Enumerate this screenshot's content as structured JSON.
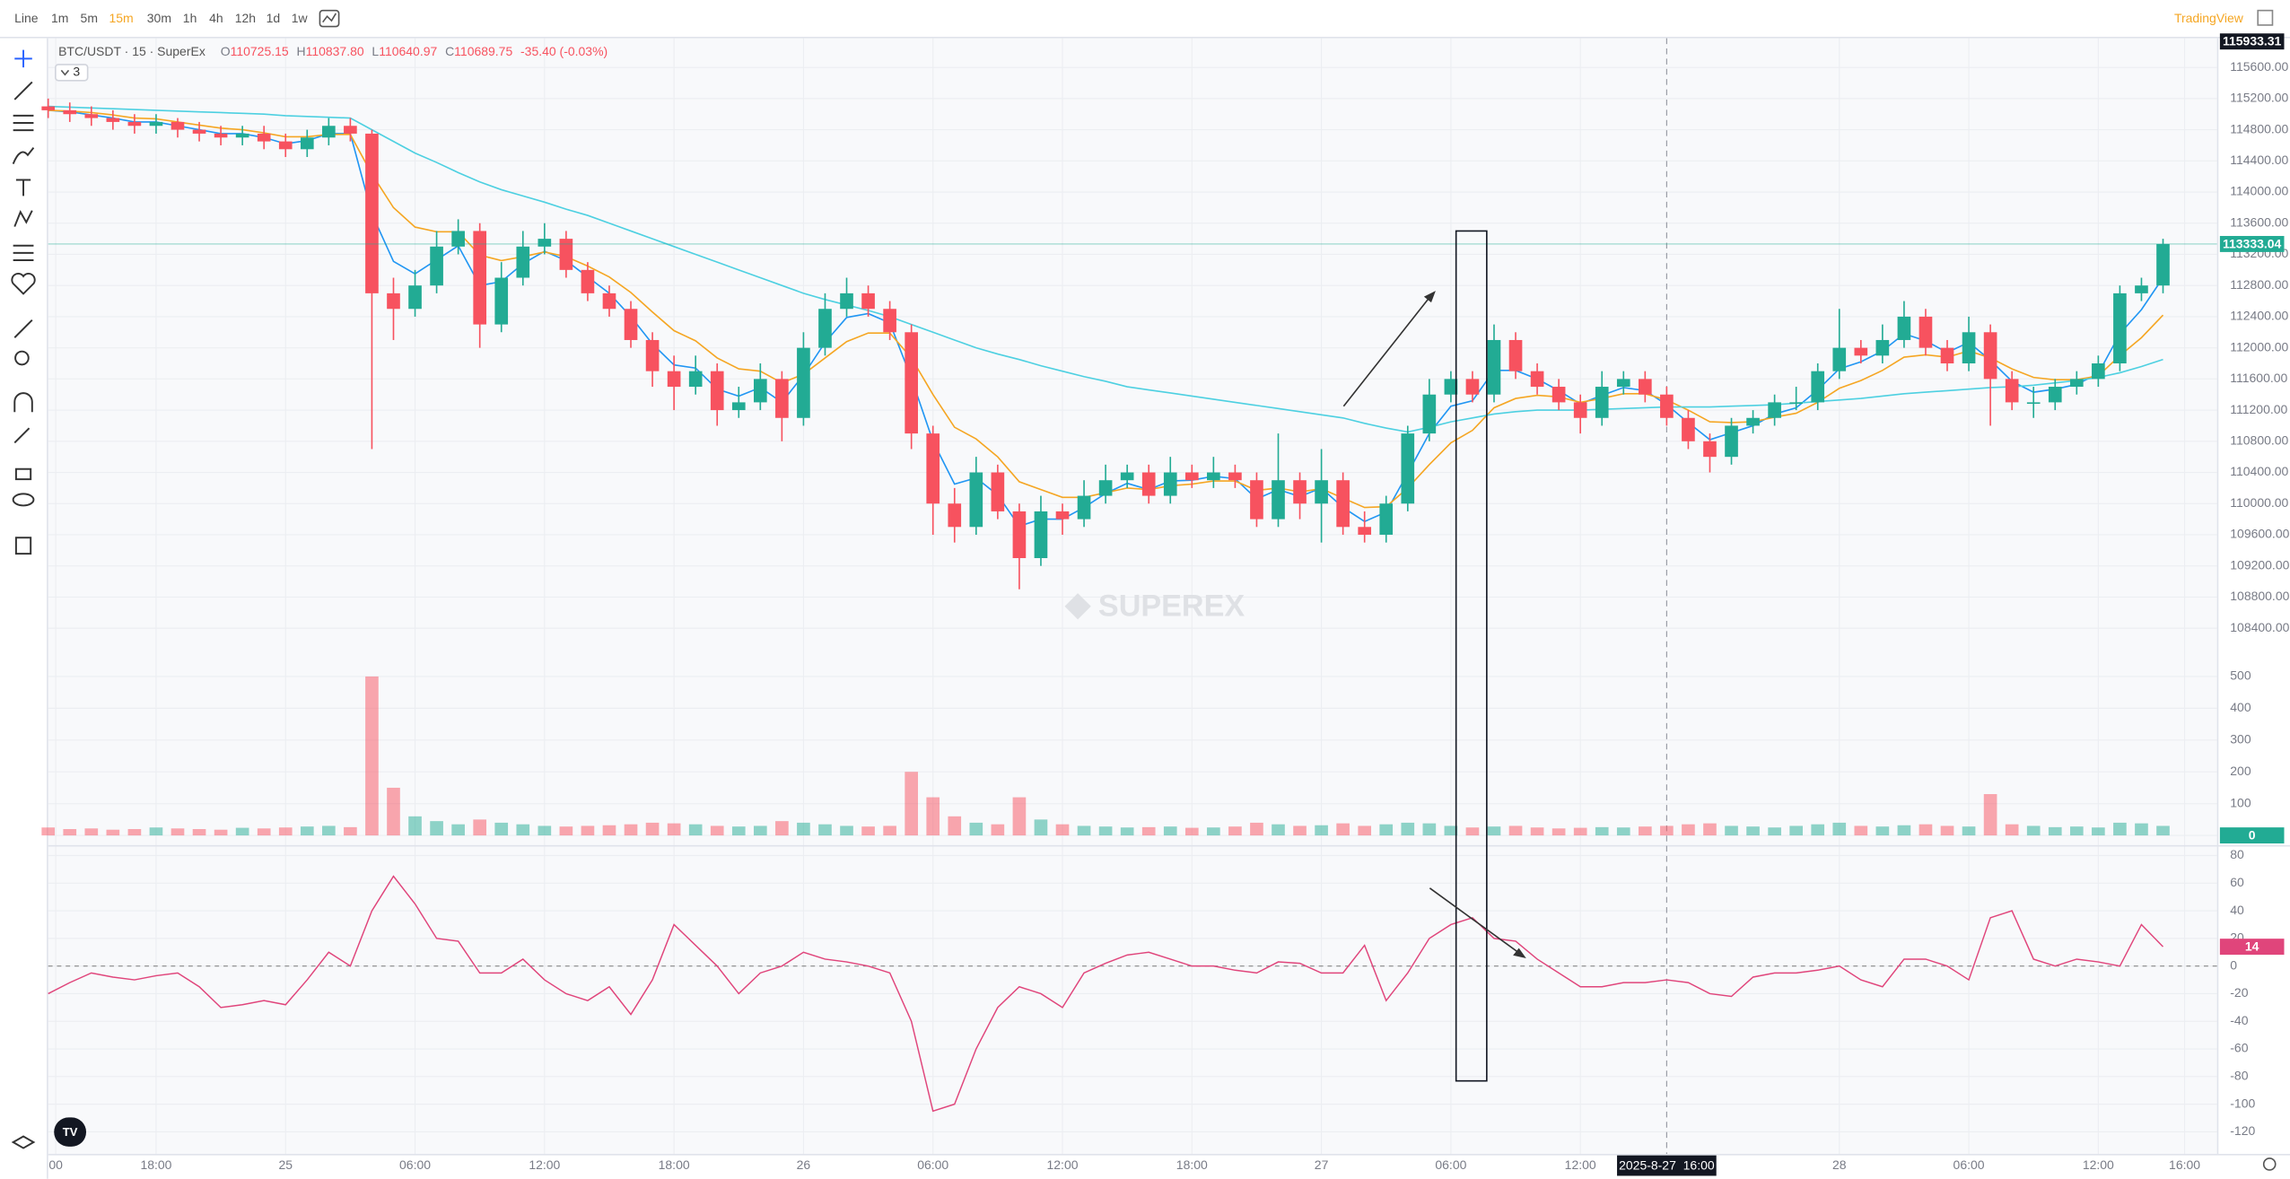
{
  "toolbar": {
    "intervals": [
      "Line",
      "1m",
      "5m",
      "15m",
      "30m",
      "1h",
      "4h",
      "12h",
      "1d",
      "1w"
    ],
    "active": 3,
    "brand": "TradingView"
  },
  "legend": {
    "symbol": "BTC/USDT · 15 · SuperEx",
    "ohlc": [
      {
        "key": "O",
        "value": "110725.15"
      },
      {
        "key": "H",
        "value": "110837.80"
      },
      {
        "key": "L",
        "value": "110640.97"
      },
      {
        "key": "C",
        "value": "110689.75"
      }
    ],
    "change": "-35.40 (-0.03%)",
    "indicators": "3"
  },
  "watermark": "SUPEREX",
  "crosshair": {
    "time": "2025-8-27  16:00",
    "x": 75,
    "price": 115933.31
  },
  "chart_data": {
    "type": "candlestick",
    "up_color": "#22ab94",
    "down_color": "#f7525f",
    "grid": true,
    "xlim": [
      0,
      100.5
    ],
    "xticks": [
      {
        "value": 0.35,
        "label": "00"
      },
      {
        "value": 5,
        "label": "18:00"
      },
      {
        "value": 11,
        "label": "25"
      },
      {
        "value": 17,
        "label": "06:00"
      },
      {
        "value": 23,
        "label": "12:00"
      },
      {
        "value": 29,
        "label": "18:00"
      },
      {
        "value": 35,
        "label": "26"
      },
      {
        "value": 41,
        "label": "06:00"
      },
      {
        "value": 47,
        "label": "12:00"
      },
      {
        "value": 53,
        "label": "18:00"
      },
      {
        "value": 59,
        "label": "27"
      },
      {
        "value": 65,
        "label": "06:00"
      },
      {
        "value": 71,
        "label": "12:00"
      },
      {
        "value": 83,
        "label": "28"
      },
      {
        "value": 89,
        "label": "06:00"
      },
      {
        "value": 95,
        "label": "12:00"
      },
      {
        "value": 99,
        "label": "16:00"
      }
    ],
    "ylim": [
      108025,
      115975
    ],
    "yticks": [
      {
        "value": 108400,
        "label": "108400.00"
      },
      {
        "value": 108800,
        "label": "108800.00"
      },
      {
        "value": 109200,
        "label": "109200.00"
      },
      {
        "value": 109600,
        "label": "109600.00"
      },
      {
        "value": 110000,
        "label": "110000.00"
      },
      {
        "value": 110400,
        "label": "110400.00"
      },
      {
        "value": 110800,
        "label": "110800.00"
      },
      {
        "value": 111200,
        "label": "111200.00"
      },
      {
        "value": 111600,
        "label": "111600.00"
      },
      {
        "value": 112000,
        "label": "112000.00"
      },
      {
        "value": 112400,
        "label": "112400.00"
      },
      {
        "value": 112800,
        "label": "112800.00"
      },
      {
        "value": 113200,
        "label": "113200.00"
      },
      {
        "value": 113600,
        "label": "113600.00"
      },
      {
        "value": 114000,
        "label": "114000.00"
      },
      {
        "value": 114400,
        "label": "114400.00"
      },
      {
        "value": 114800,
        "label": "114800.00"
      },
      {
        "value": 115200,
        "label": "115200.00"
      },
      {
        "value": 115600,
        "label": "115600.00"
      }
    ],
    "x": [
      0,
      1,
      2,
      3,
      4,
      5,
      6,
      7,
      8,
      9,
      10,
      11,
      12,
      13,
      14,
      15,
      16,
      17,
      18,
      19,
      20,
      21,
      22,
      23,
      24,
      25,
      26,
      27,
      28,
      29,
      30,
      31,
      32,
      33,
      34,
      35,
      36,
      37,
      38,
      39,
      40,
      41,
      42,
      43,
      44,
      45,
      46,
      47,
      48,
      49,
      50,
      51,
      52,
      53,
      54,
      55,
      56,
      57,
      58,
      59,
      60,
      61,
      62,
      63,
      64,
      65,
      66,
      67,
      68,
      69,
      70,
      71,
      72,
      73,
      74,
      75,
      76,
      77,
      78,
      79,
      80,
      81,
      82,
      83,
      84,
      85,
      86,
      87,
      88,
      89,
      90,
      91,
      92,
      93,
      94,
      95,
      96,
      97,
      98
    ],
    "open": [
      115100,
      115050,
      115000,
      114950,
      114900,
      114850,
      114900,
      114800,
      114750,
      114700,
      114750,
      114650,
      114550,
      114700,
      114850,
      114750,
      112700,
      112500,
      112800,
      113300,
      113500,
      112300,
      112900,
      113300,
      113400,
      113000,
      112700,
      112500,
      112100,
      111700,
      111500,
      111700,
      111200,
      111300,
      111600,
      111100,
      112000,
      112500,
      112700,
      112500,
      112200,
      110900,
      110000,
      109700,
      110400,
      109900,
      109300,
      109900,
      109800,
      110100,
      110300,
      110400,
      110100,
      110400,
      110300,
      110400,
      110300,
      109800,
      110300,
      110000,
      110300,
      109700,
      109600,
      110000,
      110900,
      111400,
      111600,
      111400,
      112100,
      111700,
      111500,
      111300,
      111100,
      111500,
      111600,
      111400,
      111100,
      110800,
      110600,
      111000,
      111100,
      111300,
      111300,
      111700,
      112000,
      111900,
      112100,
      112400,
      112000,
      111800,
      112200,
      111600,
      111300,
      111300,
      111500,
      111600,
      111800,
      112700,
      112800
    ],
    "high": [
      115200,
      115150,
      115100,
      115050,
      115000,
      115000,
      114950,
      114900,
      114850,
      114850,
      114850,
      114750,
      114800,
      114950,
      114950,
      114800,
      112900,
      113000,
      113500,
      113650,
      113600,
      113100,
      113500,
      113600,
      113500,
      113100,
      112800,
      112600,
      112200,
      111900,
      111900,
      111800,
      111500,
      111800,
      111700,
      112200,
      112700,
      112900,
      112800,
      112600,
      112300,
      111000,
      110200,
      110600,
      110500,
      110000,
      110100,
      110000,
      110300,
      110500,
      110500,
      110500,
      110600,
      110500,
      110600,
      110500,
      110400,
      110900,
      110400,
      110700,
      110400,
      109900,
      110100,
      111000,
      111600,
      111700,
      111700,
      112300,
      112200,
      111800,
      111600,
      111400,
      111700,
      111700,
      111700,
      111500,
      111200,
      110900,
      111100,
      111200,
      111400,
      111500,
      111800,
      112500,
      112100,
      112300,
      112600,
      112500,
      112100,
      112400,
      112300,
      111700,
      111500,
      111600,
      111700,
      111900,
      112800,
      112900,
      113400
    ],
    "low": [
      114950,
      114900,
      114850,
      114800,
      114750,
      114750,
      114700,
      114650,
      114600,
      114600,
      114550,
      114450,
      114450,
      114600,
      114650,
      110700,
      112100,
      112400,
      112700,
      113200,
      112000,
      112200,
      112800,
      113200,
      112900,
      112600,
      112400,
      112000,
      111500,
      111200,
      111400,
      111000,
      111100,
      111200,
      110800,
      111000,
      111900,
      112400,
      112400,
      112100,
      110700,
      109600,
      109500,
      109600,
      109800,
      108900,
      109200,
      109600,
      109700,
      110000,
      110200,
      110000,
      110000,
      110200,
      110200,
      110200,
      109700,
      109700,
      109800,
      109500,
      109600,
      109500,
      109500,
      109900,
      110800,
      111300,
      111300,
      111300,
      111600,
      111400,
      111200,
      110900,
      111000,
      111400,
      111300,
      111000,
      110700,
      110400,
      110500,
      110900,
      111000,
      111200,
      111200,
      111600,
      111800,
      111800,
      112000,
      111900,
      111700,
      111700,
      111000,
      111200,
      111100,
      111200,
      111400,
      111500,
      111700,
      112600,
      112700
    ],
    "close": [
      115050,
      115000,
      114950,
      114900,
      114850,
      114900,
      114800,
      114750,
      114700,
      114750,
      114650,
      114550,
      114700,
      114850,
      114750,
      112700,
      112500,
      112800,
      113300,
      113500,
      112300,
      112900,
      113300,
      113400,
      113000,
      112700,
      112500,
      112100,
      111700,
      111500,
      111700,
      111200,
      111300,
      111600,
      111100,
      112000,
      112500,
      112700,
      112500,
      112200,
      110900,
      110000,
      109700,
      110400,
      109900,
      109300,
      109900,
      109800,
      110100,
      110300,
      110400,
      110100,
      110400,
      110300,
      110400,
      110300,
      109800,
      110300,
      110000,
      110300,
      109700,
      109600,
      110000,
      110900,
      111400,
      111600,
      111400,
      112100,
      111700,
      111500,
      111300,
      111100,
      111500,
      111600,
      111400,
      111100,
      110800,
      110600,
      111000,
      111100,
      111300,
      111300,
      111700,
      112000,
      111900,
      112100,
      112400,
      112000,
      111800,
      112200,
      111600,
      111300,
      111300,
      111500,
      111600,
      111800,
      112700,
      112800,
      113333.04
    ],
    "ma_series": [
      {
        "color": "#2196f3",
        "values": [
          115050,
          115030,
          114990,
          114950,
          114900,
          114900,
          114850,
          114800,
          114750,
          114750,
          114700,
          114620,
          114660,
          114750,
          114750,
          113720,
          113110,
          112950,
          113130,
          113310,
          112800,
          112850,
          113080,
          113240,
          113120,
          112910,
          112700,
          112400,
          112050,
          111780,
          111740,
          111470,
          111380,
          111490,
          111300,
          111650,
          112070,
          112390,
          112440,
          112320,
          111610,
          110800,
          110250,
          110330,
          110110,
          109710,
          109800,
          109800,
          109950,
          110130,
          110260,
          110180,
          110290,
          110300,
          110350,
          110320,
          110060,
          110180,
          110090,
          110200,
          109950,
          109770,
          109890,
          110390,
          110900,
          111250,
          111320,
          111710,
          111710,
          111600,
          111450,
          111280,
          111390,
          111490,
          111450,
          111270,
          111040,
          110820,
          110910,
          111000,
          111150,
          111230,
          111460,
          111730,
          111820,
          111960,
          112180,
          112090,
          111940,
          112070,
          111840,
          111570,
          111430,
          111470,
          111530,
          111670,
          112180,
          112490,
          112900
        ]
      },
      {
        "color": "#f5a623",
        "values": [
          115050,
          115040,
          115020,
          114990,
          114950,
          114940,
          114900,
          114860,
          114820,
          114800,
          114760,
          114710,
          114710,
          114740,
          114740,
          114230,
          113800,
          113550,
          113490,
          113490,
          113190,
          113120,
          113170,
          113230,
          113170,
          113050,
          112910,
          112710,
          112460,
          112220,
          112090,
          111870,
          111730,
          111700,
          111550,
          111660,
          111870,
          112080,
          112190,
          112190,
          111870,
          111400,
          110980,
          110830,
          110600,
          110280,
          110180,
          110080,
          110080,
          110140,
          110200,
          110180,
          110230,
          110250,
          110290,
          110290,
          110170,
          110200,
          110150,
          110190,
          110070,
          109950,
          109960,
          110200,
          110500,
          110780,
          110940,
          111230,
          111350,
          111390,
          111370,
          111300,
          111350,
          111410,
          111410,
          111330,
          111200,
          111050,
          111040,
          111050,
          111110,
          111160,
          111300,
          111480,
          111580,
          111710,
          111880,
          111910,
          111880,
          111960,
          111870,
          111730,
          111620,
          111590,
          111590,
          111640,
          111900,
          112130,
          112420
        ]
      },
      {
        "color": "#4dd0e1",
        "values": [
          115100,
          115090,
          115080,
          115070,
          115060,
          115050,
          115040,
          115030,
          115020,
          115010,
          115000,
          114980,
          114970,
          114960,
          114950,
          114800,
          114650,
          114500,
          114380,
          114250,
          114130,
          114030,
          113950,
          113870,
          113780,
          113700,
          113600,
          113500,
          113400,
          113300,
          113200,
          113100,
          113000,
          112900,
          112800,
          112700,
          112620,
          112550,
          112480,
          112400,
          112300,
          112200,
          112100,
          112000,
          111920,
          111850,
          111770,
          111700,
          111630,
          111570,
          111500,
          111460,
          111420,
          111380,
          111340,
          111300,
          111260,
          111220,
          111180,
          111140,
          111100,
          111030,
          110970,
          110920,
          110980,
          111050,
          111100,
          111150,
          111180,
          111200,
          111200,
          111200,
          111210,
          111220,
          111230,
          111240,
          111240,
          111240,
          111250,
          111260,
          111270,
          111290,
          111310,
          111330,
          111350,
          111380,
          111410,
          111430,
          111450,
          111470,
          111490,
          111500,
          111520,
          111550,
          111580,
          111620,
          111680,
          111760,
          111850
        ]
      }
    ],
    "volume": {
      "values": [
        25,
        20,
        22,
        18,
        20,
        25,
        22,
        20,
        18,
        24,
        22,
        25,
        28,
        30,
        26,
        500,
        150,
        60,
        45,
        35,
        50,
        40,
        35,
        30,
        28,
        30,
        32,
        35,
        40,
        38,
        35,
        30,
        28,
        30,
        45,
        40,
        35,
        30,
        28,
        30,
        200,
        120,
        60,
        40,
        35,
        120,
        50,
        35,
        30,
        28,
        25,
        26,
        28,
        24,
        25,
        28,
        40,
        35,
        30,
        32,
        38,
        30,
        35,
        40,
        38,
        30,
        25,
        28,
        30,
        25,
        22,
        24,
        26,
        25,
        28,
        30,
        35,
        38,
        30,
        28,
        25,
        30,
        35,
        40,
        30,
        28,
        32,
        35,
        30,
        28,
        130,
        35,
        30,
        26,
        28,
        25,
        40,
        38,
        30
      ],
      "ylim": [
        -28,
        560
      ],
      "yticks": [
        0,
        100,
        200,
        300,
        400,
        500
      ],
      "current": 0
    },
    "oscillator": {
      "color": "#e0457b",
      "values": [
        -20,
        -12,
        -5,
        -8,
        -10,
        -7,
        -5,
        -15,
        -30,
        -28,
        -25,
        -28,
        -10,
        10,
        0,
        40,
        65,
        45,
        20,
        18,
        -5,
        -5,
        5,
        -10,
        -20,
        -25,
        -15,
        -35,
        -10,
        30,
        15,
        0,
        -20,
        -5,
        0,
        10,
        5,
        3,
        0,
        -5,
        -40,
        -105,
        -100,
        -60,
        -30,
        -15,
        -20,
        -30,
        -5,
        2,
        8,
        10,
        5,
        0,
        0,
        -3,
        -5,
        3,
        2,
        -5,
        -5,
        15,
        -25,
        -5,
        20,
        30,
        35,
        20,
        18,
        5,
        -5,
        -15,
        -15,
        -12,
        -12,
        -10,
        -12,
        -20,
        -22,
        -8,
        -5,
        -5,
        -3,
        0,
        -10,
        -15,
        5,
        5,
        0,
        -10,
        35,
        40,
        5,
        0,
        5,
        3,
        0,
        30,
        14
      ],
      "ylim": [
        -136,
        86
      ],
      "yticks": [
        -120,
        -100,
        -80,
        -60,
        -40,
        -20,
        0,
        20,
        40,
        60,
        80
      ]
    }
  }
}
